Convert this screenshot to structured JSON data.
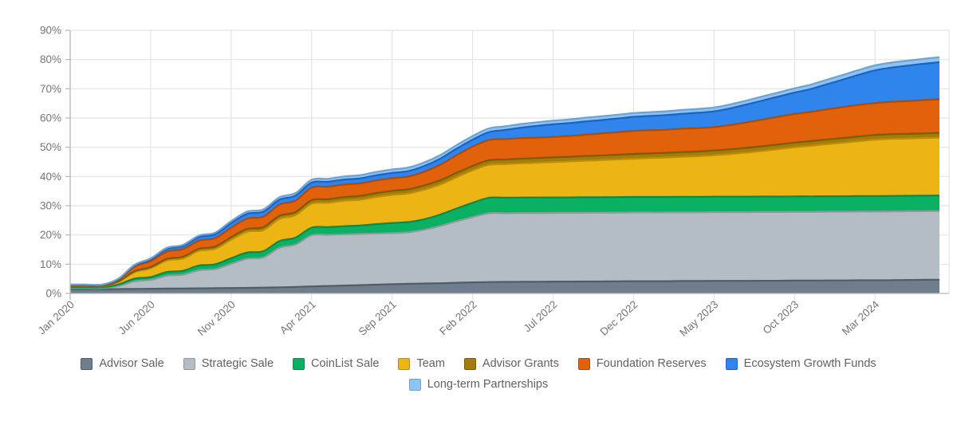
{
  "chart_data": {
    "type": "area",
    "stacked": true,
    "grid": true,
    "legend_position": "bottom",
    "x_tick_labels": [
      "Jan 2020",
      "Jun 2020",
      "Nov 2020",
      "Apr 2021",
      "Sep 2021",
      "Feb 2022",
      "Jul 2022",
      "Dec 2022",
      "May 2023",
      "Oct 2023",
      "Mar 2024"
    ],
    "x_tick_every_months": 5,
    "months_total": 55,
    "y_axis": {
      "min": 0,
      "max": 90,
      "step": 10,
      "unit": "%"
    },
    "y_tick_labels": [
      "0%",
      "10%",
      "20%",
      "30%",
      "40%",
      "50%",
      "60%",
      "70%",
      "80%",
      "90%"
    ],
    "colors": {
      "grid": "#e4e4e4",
      "axis": "#b8b8b8",
      "tick_text": "#757575"
    },
    "series": [
      {
        "name": "Advisor Sale",
        "color": "#6e7e8d",
        "edge": "#4f5d69",
        "values": [
          1.45,
          1.45,
          1.45,
          1.5,
          1.55,
          1.6,
          1.65,
          1.7,
          1.75,
          1.8,
          1.85,
          1.9,
          2.0,
          2.1,
          2.25,
          2.4,
          2.55,
          2.7,
          2.85,
          3.0,
          3.15,
          3.3,
          3.4,
          3.5,
          3.65,
          3.8,
          3.9,
          3.95,
          4.0,
          4.0,
          4.05,
          4.05,
          4.1,
          4.1,
          4.15,
          4.2,
          4.2,
          4.2,
          4.25,
          4.25,
          4.3,
          4.3,
          4.3,
          4.35,
          4.35,
          4.4,
          4.4,
          4.45,
          4.45,
          4.5,
          4.5,
          4.55,
          4.6,
          4.65,
          4.7
        ]
      },
      {
        "name": "Strategic Sale",
        "color": "#b5bdc4",
        "edge": "#8f989f",
        "values": [
          0.4,
          0.4,
          0.4,
          1.0,
          2.6,
          3.0,
          4.4,
          4.7,
          6.2,
          6.5,
          8.3,
          10.0,
          10.3,
          13.5,
          14.5,
          17.5,
          17.5,
          17.5,
          17.5,
          17.5,
          17.5,
          17.6,
          18.4,
          19.6,
          21.0,
          22.3,
          23.5,
          23.5,
          23.5,
          23.5,
          23.5,
          23.5,
          23.5,
          23.5,
          23.5,
          23.5,
          23.5,
          23.5,
          23.5,
          23.5,
          23.5,
          23.5,
          23.5,
          23.5,
          23.5,
          23.5,
          23.5,
          23.5,
          23.5,
          23.5,
          23.5,
          23.5,
          23.5,
          23.5,
          23.5
        ]
      },
      {
        "name": "CoinList Sale",
        "color": "#0bb163",
        "edge": "#078a4c",
        "values": [
          0.3,
          0.3,
          0.3,
          0.55,
          0.9,
          1.0,
          1.3,
          1.35,
          1.6,
          1.65,
          1.9,
          2.1,
          2.15,
          2.3,
          2.35,
          2.6,
          2.65,
          2.8,
          2.9,
          3.2,
          3.45,
          3.5,
          3.6,
          3.9,
          4.4,
          4.9,
          5.3,
          5.3,
          5.3,
          5.3,
          5.3,
          5.3,
          5.3,
          5.3,
          5.3,
          5.3,
          5.3,
          5.3,
          5.3,
          5.3,
          5.3,
          5.3,
          5.3,
          5.3,
          5.3,
          5.3,
          5.3,
          5.3,
          5.3,
          5.3,
          5.3,
          5.3,
          5.3,
          5.3,
          5.3
        ]
      },
      {
        "name": "Team",
        "color": "#edb513",
        "edge": "#bf8d03",
        "values": [
          0.35,
          0.35,
          0.35,
          0.9,
          2.2,
          3.0,
          3.9,
          4.2,
          5.0,
          5.3,
          6.3,
          7.1,
          7.2,
          7.6,
          7.7,
          8.2,
          8.3,
          8.7,
          8.8,
          9.3,
          9.6,
          9.8,
          10.1,
          10.3,
          10.7,
          11.1,
          11.3,
          11.5,
          11.7,
          11.9,
          12.1,
          12.3,
          12.5,
          12.7,
          12.9,
          13.1,
          13.3,
          13.5,
          13.7,
          13.9,
          14.2,
          14.6,
          15.1,
          15.6,
          16.2,
          16.8,
          17.3,
          17.8,
          18.3,
          18.8,
          19.3,
          19.5,
          19.6,
          19.7,
          19.8
        ]
      },
      {
        "name": "Advisor Grants",
        "color": "#a47c0a",
        "edge": "#7c5c04",
        "values": [
          0.12,
          0.12,
          0.12,
          0.2,
          0.35,
          0.45,
          0.55,
          0.6,
          0.7,
          0.75,
          0.9,
          1.0,
          1.0,
          1.05,
          1.05,
          1.2,
          1.2,
          1.25,
          1.3,
          1.35,
          1.4,
          1.4,
          1.45,
          1.45,
          1.5,
          1.5,
          1.55,
          1.55,
          1.6,
          1.6,
          1.6,
          1.6,
          1.6,
          1.6,
          1.6,
          1.6,
          1.6,
          1.6,
          1.6,
          1.6,
          1.6,
          1.6,
          1.6,
          1.6,
          1.6,
          1.6,
          1.6,
          1.6,
          1.6,
          1.6,
          1.6,
          1.6,
          1.6,
          1.6,
          1.6
        ]
      },
      {
        "name": "Foundation Reserves",
        "color": "#e2610b",
        "edge": "#b04a05",
        "values": [
          0.25,
          0.25,
          0.25,
          0.6,
          1.5,
          2.0,
          2.5,
          2.6,
          2.8,
          2.9,
          3.2,
          3.5,
          3.6,
          3.8,
          3.9,
          4.3,
          4.3,
          4.3,
          4.3,
          4.3,
          4.3,
          4.4,
          4.7,
          5.3,
          6.0,
          6.6,
          6.9,
          7.0,
          7.0,
          7.0,
          7.0,
          7.1,
          7.3,
          7.5,
          7.7,
          7.9,
          7.9,
          7.9,
          8.0,
          8.0,
          8.0,
          8.3,
          8.7,
          9.1,
          9.5,
          9.8,
          10.0,
          10.3,
          10.6,
          10.8,
          10.9,
          11.1,
          11.2,
          11.4,
          11.5
        ]
      },
      {
        "name": "Ecosystem Growth Funds",
        "color": "#2f85ec",
        "edge": "#1a63c2",
        "values": [
          0.12,
          0.12,
          0.12,
          0.25,
          0.5,
          0.65,
          0.9,
          1.0,
          1.2,
          1.3,
          1.6,
          1.65,
          1.7,
          1.7,
          1.7,
          1.7,
          1.7,
          1.7,
          1.7,
          1.75,
          1.8,
          1.85,
          1.95,
          2.1,
          2.25,
          2.4,
          2.7,
          3.1,
          3.6,
          4.0,
          4.3,
          4.4,
          4.5,
          4.6,
          4.7,
          4.8,
          4.9,
          5.0,
          5.1,
          5.25,
          5.4,
          5.7,
          6.1,
          6.5,
          6.9,
          7.3,
          7.8,
          8.6,
          9.4,
          10.3,
          11.2,
          11.7,
          12.1,
          12.4,
          12.7
        ]
      },
      {
        "name": "Long-term Partnerships",
        "color": "#8ec4f5",
        "edge": "#6ba3d6",
        "values": [
          0.06,
          0.06,
          0.06,
          0.1,
          0.2,
          0.3,
          0.4,
          0.45,
          0.55,
          0.6,
          0.7,
          0.75,
          0.8,
          0.85,
          0.9,
          1.0,
          1.0,
          1.05,
          1.1,
          1.15,
          1.2,
          1.2,
          1.2,
          1.2,
          1.2,
          1.25,
          1.25,
          1.25,
          1.25,
          1.25,
          1.25,
          1.25,
          1.3,
          1.3,
          1.3,
          1.3,
          1.3,
          1.3,
          1.3,
          1.3,
          1.3,
          1.35,
          1.35,
          1.4,
          1.4,
          1.45,
          1.5,
          1.55,
          1.6,
          1.65,
          1.7,
          1.7,
          1.7,
          1.7,
          1.7
        ]
      }
    ]
  },
  "legend": {
    "rows": [
      [
        0,
        1,
        2,
        3,
        4,
        5,
        6
      ],
      [
        7
      ]
    ]
  }
}
